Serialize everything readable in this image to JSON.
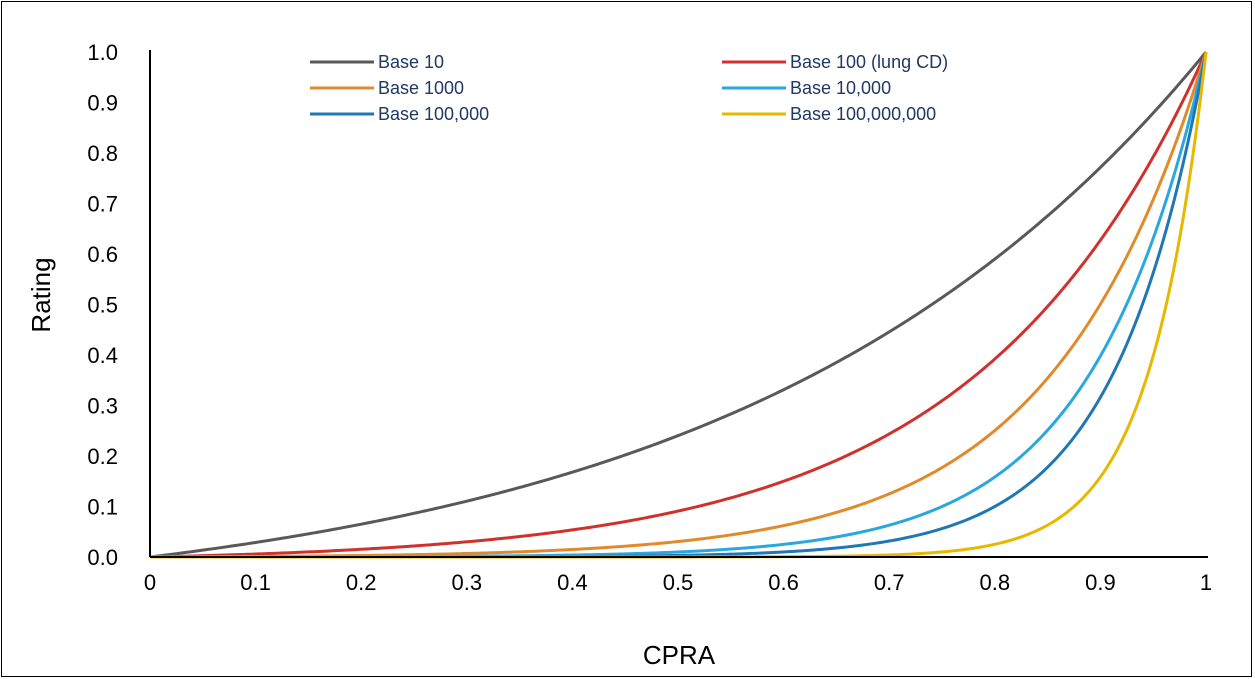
{
  "chart_data": {
    "type": "line",
    "title": "",
    "xlabel": "CPRA",
    "ylabel": "Rating",
    "xlim": [
      0,
      1
    ],
    "ylim": [
      0,
      1
    ],
    "x_ticks": [
      "0",
      "0.1",
      "0.2",
      "0.3",
      "0.4",
      "0.5",
      "0.6",
      "0.7",
      "0.8",
      "0.9",
      "1"
    ],
    "y_ticks": [
      "0.0",
      "0.1",
      "0.2",
      "0.3",
      "0.4",
      "0.5",
      "0.6",
      "0.7",
      "0.8",
      "0.9",
      "1.0"
    ],
    "grid": false,
    "legend_position": "top",
    "series": [
      {
        "name": "Base 10",
        "base": 10,
        "color": "#595959",
        "x": [
          0,
          0.1,
          0.2,
          0.3,
          0.4,
          0.5,
          0.6,
          0.7,
          0.8,
          0.9,
          1
        ],
        "values": [
          0.0,
          0.03,
          0.07,
          0.11,
          0.17,
          0.24,
          0.33,
          0.45,
          0.59,
          0.77,
          1.0
        ]
      },
      {
        "name": "Base 100 (lung CD)",
        "base": 100,
        "color": "#d0312d",
        "x": [
          0,
          0.1,
          0.2,
          0.3,
          0.4,
          0.5,
          0.6,
          0.7,
          0.8,
          0.9,
          1
        ],
        "values": [
          0.0,
          0.006,
          0.015,
          0.03,
          0.055,
          0.09,
          0.15,
          0.24,
          0.39,
          0.62,
          1.0
        ]
      },
      {
        "name": "Base 1000",
        "base": 1000,
        "color": "#e08a2c",
        "x": [
          0,
          0.1,
          0.2,
          0.3,
          0.4,
          0.5,
          0.6,
          0.7,
          0.8,
          0.9,
          1
        ],
        "values": [
          0.0,
          0.001,
          0.003,
          0.007,
          0.015,
          0.03,
          0.06,
          0.12,
          0.25,
          0.5,
          1.0
        ]
      },
      {
        "name": "Base 10,000",
        "base": 10000,
        "color": "#2aa7df",
        "x": [
          0,
          0.1,
          0.2,
          0.3,
          0.4,
          0.5,
          0.6,
          0.7,
          0.8,
          0.9,
          1
        ],
        "values": [
          0.0,
          0.0,
          0.001,
          0.002,
          0.004,
          0.01,
          0.025,
          0.06,
          0.16,
          0.4,
          1.0
        ]
      },
      {
        "name": "Base 100,000",
        "base": 100000,
        "color": "#1f78b4",
        "x": [
          0,
          0.1,
          0.2,
          0.3,
          0.4,
          0.5,
          0.6,
          0.7,
          0.8,
          0.9,
          1
        ],
        "values": [
          0.0,
          0.0,
          0.0,
          0.0,
          0.001,
          0.003,
          0.01,
          0.03,
          0.1,
          0.32,
          1.0
        ]
      },
      {
        "name": "Base 100,000,000",
        "base": 100000000,
        "color": "#e6b800",
        "x": [
          0,
          0.1,
          0.2,
          0.3,
          0.4,
          0.5,
          0.6,
          0.7,
          0.8,
          0.9,
          1
        ],
        "values": [
          0.0,
          0.0,
          0.0,
          0.0,
          0.0,
          0.0,
          0.001,
          0.004,
          0.025,
          0.16,
          1.0
        ]
      }
    ]
  }
}
